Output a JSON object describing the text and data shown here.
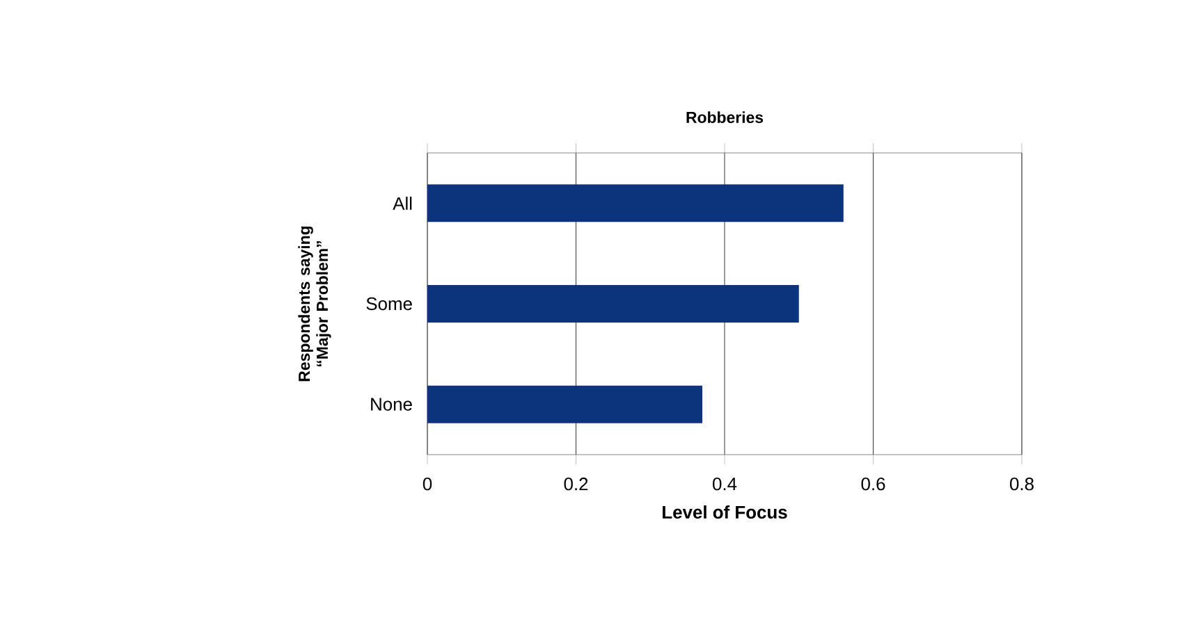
{
  "chart_data": {
    "type": "bar",
    "orientation": "horizontal",
    "title": "Robberies",
    "xlabel": "Level of Focus",
    "ylabel": "Respondents saying “Major Problem”",
    "categories": [
      "All",
      "Some",
      "None"
    ],
    "values": [
      0.56,
      0.5,
      0.37
    ],
    "color": "#0c347d",
    "xlim": [
      0,
      0.8
    ],
    "xticks": [
      0,
      0.2,
      0.4,
      0.6,
      0.8
    ],
    "grid": "x"
  }
}
